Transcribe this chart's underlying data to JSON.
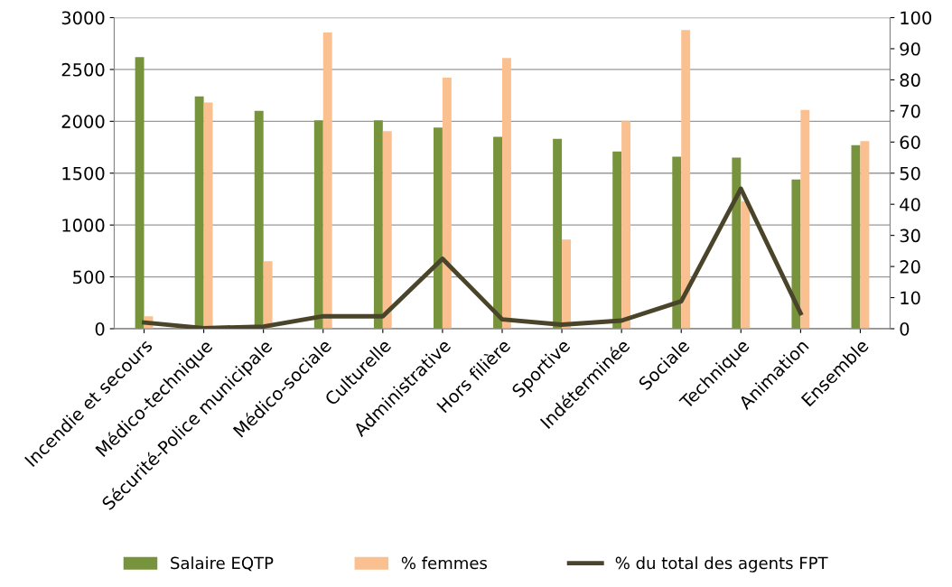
{
  "chart_data": {
    "type": "bar",
    "categories": [
      "Incendie et secours",
      "Médico-technique",
      "Sécurité-Police municipale",
      "Médico-sociale",
      "Culturelle",
      "Administrative",
      "Hors filière",
      "Sportive",
      "Indéterminée",
      "Sociale",
      "Technique",
      "Animation",
      "Ensemble"
    ],
    "series": [
      {
        "name": "Salaire EQTP",
        "color": "#77933c",
        "values": [
          2620,
          2240,
          2100,
          2010,
          2010,
          1940,
          1850,
          1830,
          1710,
          1660,
          1650,
          1440,
          1770
        ]
      },
      {
        "name": "% femmes",
        "axis": "y2",
        "color": "#fac090",
        "values": [
          4,
          72.7,
          21.7,
          95.2,
          63.5,
          80.7,
          87,
          28.7,
          66.7,
          96,
          41,
          70.3,
          60.3
        ]
      },
      {
        "name": "% du total des agents FPT",
        "type": "line",
        "axis": "y2",
        "color": "#4a452a",
        "values": [
          2,
          0.2,
          0.7,
          4,
          4,
          22.5,
          3,
          1.3,
          2.6,
          8.8,
          45,
          5,
          null
        ]
      }
    ],
    "ylim": [
      0,
      3000
    ],
    "yticks": [
      0,
      500,
      1000,
      1500,
      2000,
      2500,
      3000
    ],
    "y2lim": [
      0,
      100
    ],
    "y2ticks": [
      0,
      10,
      20,
      30,
      40,
      50,
      60,
      70,
      80,
      90,
      100
    ],
    "grid": "y",
    "legend": "bottom",
    "marker": "none",
    "line_style": "solid"
  }
}
